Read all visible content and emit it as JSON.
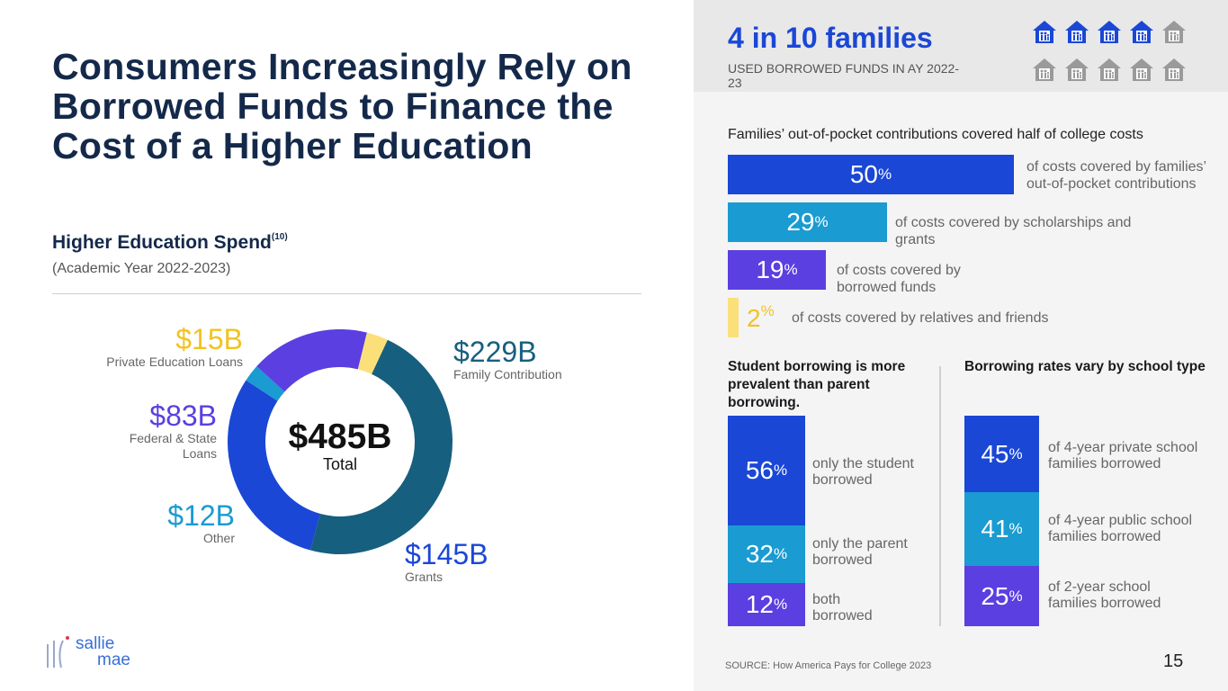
{
  "title": "Consumers Increasingly Rely on Borrowed Funds to Finance the Cost of a Higher Education",
  "spend": {
    "heading": "Higher Education Spend",
    "footnote": "(10)",
    "subtitle": "(Academic Year 2022-2023)"
  },
  "chart_data": [
    {
      "type": "pie",
      "title": "Higher Education Spend (Academic Year 2022-2023)",
      "center_value": "$485B",
      "center_label": "Total",
      "unit": "billions USD",
      "slices": [
        {
          "label": "Family Contribution",
          "value": 229,
          "display": "$229B",
          "color": "#175f7e"
        },
        {
          "label": "Grants",
          "value": 145,
          "display": "$145B",
          "color": "#1a47d6"
        },
        {
          "label": "Other",
          "value": 12,
          "display": "$12B",
          "color": "#1a9bd1"
        },
        {
          "label": "Federal & State Loans",
          "value": 83,
          "display": "$83B",
          "color": "#5b3fe0"
        },
        {
          "label": "Private Education Loans",
          "value": 15,
          "display": "$15B",
          "color": "#fbe07a"
        }
      ]
    },
    {
      "type": "bar",
      "title": "Families’ out-of-pocket contributions covered half of college costs",
      "unit": "%",
      "bars": [
        {
          "value": 50,
          "label": "of costs covered by families’ out-of-pocket contributions",
          "color": "#1a47d6"
        },
        {
          "value": 29,
          "label": "of costs covered by scholarships and grants",
          "color": "#1a9bd1"
        },
        {
          "value": 19,
          "label": "of costs covered by borrowed funds",
          "color": "#5b3fe0"
        },
        {
          "value": 2,
          "label": "of costs covered by relatives and friends",
          "color": "#fbe07a"
        }
      ]
    },
    {
      "type": "bar",
      "stacked": true,
      "title": "Student borrowing is more prevalent than parent borrowing.",
      "unit": "%",
      "segments": [
        {
          "value": 56,
          "label": "only the student borrowed",
          "color": "#1a47d6"
        },
        {
          "value": 32,
          "label": "only the parent borrowed",
          "color": "#1a9bd1"
        },
        {
          "value": 12,
          "label": "both borrowed",
          "color": "#5b3fe0"
        }
      ]
    },
    {
      "type": "bar",
      "stacked": true,
      "title": "Borrowing rates vary by school type",
      "unit": "%",
      "segments": [
        {
          "value": 45,
          "label": "of 4-year private school families borrowed",
          "color": "#1a47d6"
        },
        {
          "value": 41,
          "label": "of 4-year public school families borrowed",
          "color": "#1a9bd1"
        },
        {
          "value": 25,
          "label": "of 2-year school families borrowed",
          "color": "#5b3fe0"
        }
      ]
    }
  ],
  "families": {
    "headline": "4 in 10 families",
    "subtitle": "USED BORROWED FUNDS IN AY 2022-23",
    "highlighted": 4,
    "total": 10,
    "icon": "house-family-icon",
    "colors": {
      "on": "#1a47d6",
      "off": "#9a9a9a"
    }
  },
  "pct_symbol": "%",
  "source": "SOURCE: How America Pays for College 2023",
  "page_number": "15",
  "logo": {
    "line1": "sallie",
    "line2": "mae"
  }
}
